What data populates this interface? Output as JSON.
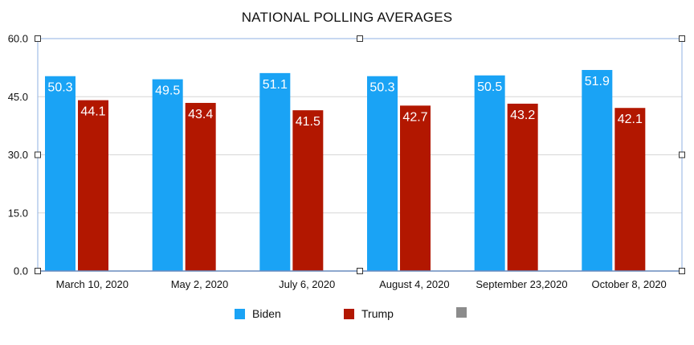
{
  "chart_data": {
    "type": "bar",
    "title": "NATIONAL POLLING AVERAGES",
    "categories": [
      "March 10, 2020",
      "May 2, 2020",
      "July 6, 2020",
      "August 4, 2020",
      "September 23,2020",
      "October 8, 2020"
    ],
    "series": [
      {
        "name": "Biden",
        "color": "#1aa3f5",
        "values": [
          50.3,
          49.5,
          51.1,
          50.3,
          50.5,
          51.9
        ]
      },
      {
        "name": "Trump",
        "color": "#b21700",
        "values": [
          44.1,
          43.4,
          41.5,
          42.7,
          43.2,
          42.1
        ]
      }
    ],
    "ylim": [
      0,
      60
    ],
    "yticks": [
      "0.0",
      "15.0",
      "30.0",
      "45.0",
      "60.0"
    ],
    "grid": true,
    "data_labels": true,
    "legend_position": "bottom",
    "legend": [
      {
        "label": "Biden",
        "color": "#1aa3f5"
      },
      {
        "label": "Trump",
        "color": "#b21700"
      },
      {
        "label": "",
        "color": "#8c8c8c"
      }
    ]
  }
}
